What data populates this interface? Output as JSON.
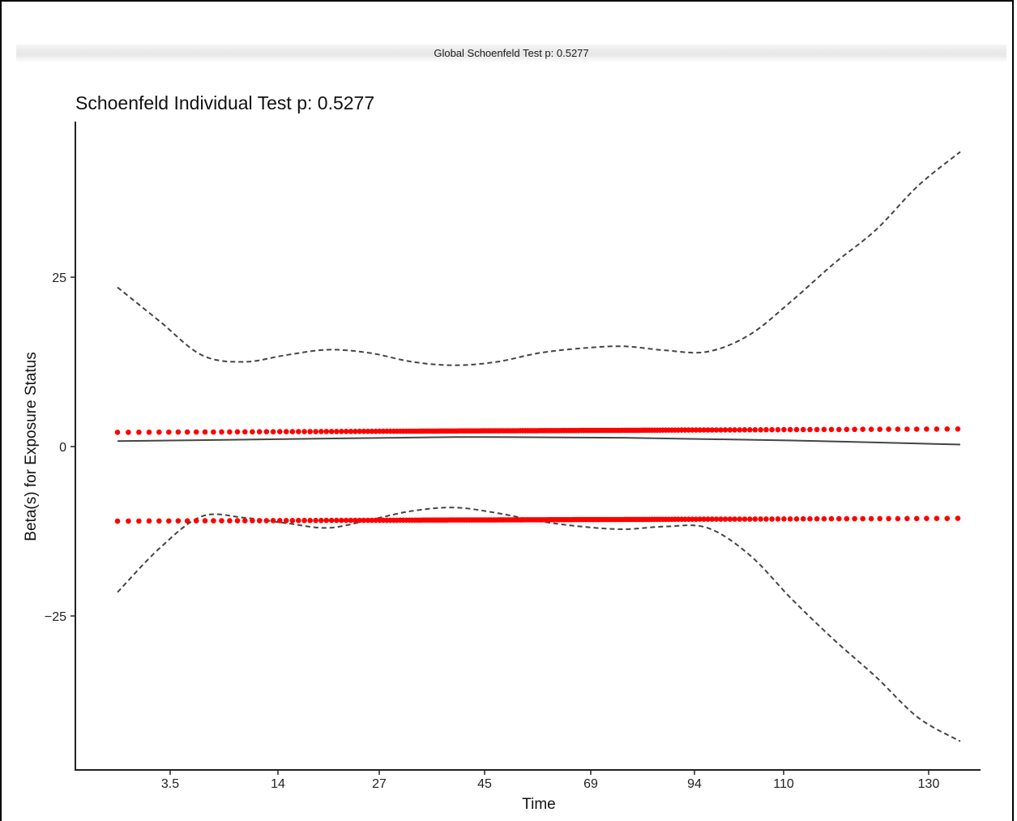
{
  "header": {
    "global_test": "Global Schoenfeld Test p: 0.5277"
  },
  "chart_data": {
    "type": "scatter",
    "title": "Schoenfeld Individual Test p: 0.5277",
    "xlabel": "Time",
    "ylabel": "Beta(s) for Exposure Status",
    "x_axis_scale": "transformed (km)",
    "xticks": [
      "3.5",
      "14",
      "27",
      "45",
      "69",
      "94",
      "110",
      "130"
    ],
    "yticks": [
      -25,
      0,
      25
    ],
    "ylim": [
      -47,
      48
    ],
    "grid": false,
    "colors": {
      "points": "#ff0000",
      "lines": "#444444",
      "axis": "#000000"
    },
    "series": [
      {
        "role": "residuals-upper",
        "style": "points",
        "y_start": 2.1,
        "y_end": 2.6
      },
      {
        "role": "residuals-lower",
        "style": "points",
        "y_start": -11.0,
        "y_end": -10.6
      },
      {
        "role": "fit",
        "style": "solid",
        "t": [
          0,
          0.2,
          0.4,
          0.6,
          0.8,
          1.0
        ],
        "y": [
          0.8,
          1.1,
          1.4,
          1.3,
          0.9,
          0.3
        ]
      },
      {
        "role": "upper-band",
        "style": "dashed",
        "t": [
          0,
          0.05,
          0.1,
          0.15,
          0.2,
          0.25,
          0.3,
          0.35,
          0.4,
          0.45,
          0.5,
          0.55,
          0.6,
          0.65,
          0.7,
          0.75,
          0.8,
          0.85,
          0.9,
          0.95,
          1.0
        ],
        "y": [
          23.5,
          18.5,
          13.5,
          12.5,
          13.5,
          14.3,
          13.8,
          12.5,
          12.0,
          12.5,
          13.8,
          14.5,
          14.8,
          14.2,
          14.0,
          16.5,
          21.5,
          27.0,
          32.0,
          38.5,
          43.5
        ]
      },
      {
        "role": "lower-band",
        "style": "dashed",
        "t": [
          0,
          0.05,
          0.1,
          0.15,
          0.2,
          0.25,
          0.3,
          0.35,
          0.4,
          0.45,
          0.5,
          0.55,
          0.6,
          0.65,
          0.7,
          0.75,
          0.8,
          0.85,
          0.9,
          0.95,
          1.0
        ],
        "y": [
          -21.5,
          -15.0,
          -10.3,
          -10.5,
          -11.3,
          -12.0,
          -10.8,
          -9.5,
          -9.0,
          -9.8,
          -11.0,
          -11.8,
          -12.2,
          -11.8,
          -12.0,
          -16.0,
          -22.5,
          -28.5,
          -34.0,
          -40.0,
          -43.5
        ]
      }
    ]
  }
}
